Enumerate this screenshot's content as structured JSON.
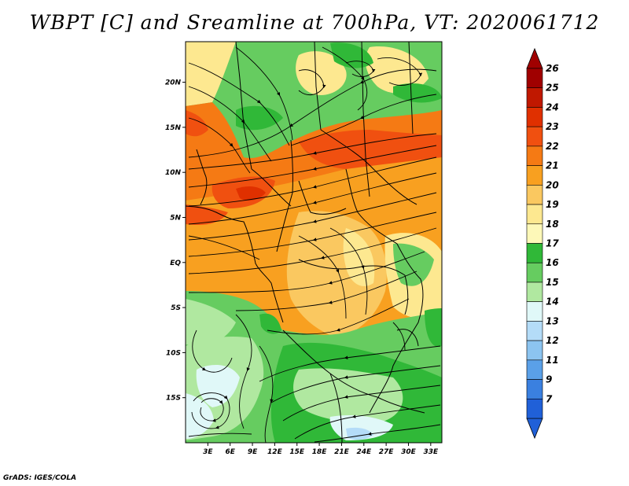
{
  "title": "WBPT [C] and Sreamline at 700hPa, VT: 2020061712",
  "footer": "GrADS: IGES/COLA",
  "map": {
    "lat_range": [
      -20,
      24.5
    ],
    "lon_range": [
      0,
      34.5
    ],
    "lat_ticks": [
      {
        "value": 20,
        "label": "20N"
      },
      {
        "value": 15,
        "label": "15N"
      },
      {
        "value": 10,
        "label": "10N"
      },
      {
        "value": 5,
        "label": "5N"
      },
      {
        "value": 0,
        "label": "EQ"
      },
      {
        "value": -5,
        "label": "5S"
      },
      {
        "value": -10,
        "label": "10S"
      },
      {
        "value": -15,
        "label": "15S"
      }
    ],
    "lon_ticks": [
      {
        "value": 3,
        "label": "3E"
      },
      {
        "value": 6,
        "label": "6E"
      },
      {
        "value": 9,
        "label": "9E"
      },
      {
        "value": 12,
        "label": "12E"
      },
      {
        "value": 15,
        "label": "15E"
      },
      {
        "value": 18,
        "label": "18E"
      },
      {
        "value": 21,
        "label": "21E"
      },
      {
        "value": 24,
        "label": "24E"
      },
      {
        "value": 27,
        "label": "27E"
      },
      {
        "value": 30,
        "label": "30E"
      },
      {
        "value": 33,
        "label": "33E"
      }
    ]
  },
  "colorbar": {
    "levels": [
      {
        "label": "26",
        "color": "#a00000"
      },
      {
        "label": "25",
        "color": "#c01800"
      },
      {
        "label": "24",
        "color": "#e03000"
      },
      {
        "label": "23",
        "color": "#f05010"
      },
      {
        "label": "22",
        "color": "#f57a14"
      },
      {
        "label": "21",
        "color": "#f8a020"
      },
      {
        "label": "20",
        "color": "#fac860"
      },
      {
        "label": "19",
        "color": "#fde890"
      },
      {
        "label": "18",
        "color": "#fdf8b8"
      },
      {
        "label": "17",
        "color": "#30b838"
      },
      {
        "label": "16",
        "color": "#66cc60"
      },
      {
        "label": "15",
        "color": "#b0e8a0"
      },
      {
        "label": "14",
        "color": "#e0f8f8"
      },
      {
        "label": "13",
        "color": "#b4dcf8"
      },
      {
        "label": "12",
        "color": "#8cc4f0"
      },
      {
        "label": "11",
        "color": "#5aa0e8"
      },
      {
        "label": "9",
        "color": "#3a80e0"
      },
      {
        "label": "7",
        "color": "#2060d8"
      }
    ],
    "top_cap_color": "#a00000",
    "bottom_cap_color": "#2060d8"
  }
}
